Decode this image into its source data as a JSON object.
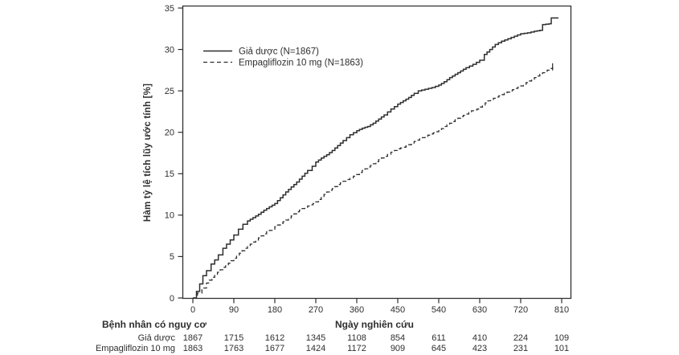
{
  "ui": {
    "background": "#ffffff",
    "text_color": "#2e2e2e",
    "line_color": "#2e2e2e"
  },
  "chart_data": {
    "type": "line",
    "subtype": "kaplan-meier-cumulative-incidence",
    "title": "",
    "xlabel": "Ngày nghiên cứu",
    "ylabel": "Hàm tỷ lệ tích lũy ước tính [%]",
    "xlim": [
      0,
      830
    ],
    "ylim": [
      0,
      35
    ],
    "x_ticks": [
      0,
      90,
      180,
      270,
      360,
      450,
      540,
      630,
      720,
      810
    ],
    "y_ticks": [
      0,
      5,
      10,
      15,
      20,
      25,
      30,
      35
    ],
    "grid": false,
    "legend_position": "inside-top-left",
    "series": [
      {
        "name": "Giả dược (N=1867)",
        "style": "solid",
        "color": "#2e2e2e",
        "end_tick": false,
        "points": [
          [
            0,
            0
          ],
          [
            8,
            0.8
          ],
          [
            15,
            1.7
          ],
          [
            22,
            2.7
          ],
          [
            30,
            3.3
          ],
          [
            40,
            4.1
          ],
          [
            48,
            4.6
          ],
          [
            56,
            5.2
          ],
          [
            66,
            6.0
          ],
          [
            74,
            6.5
          ],
          [
            82,
            7.0
          ],
          [
            90,
            7.6
          ],
          [
            100,
            8.3
          ],
          [
            110,
            8.9
          ],
          [
            120,
            9.3
          ],
          [
            132,
            9.7
          ],
          [
            144,
            10.1
          ],
          [
            156,
            10.6
          ],
          [
            168,
            11.0
          ],
          [
            180,
            11.4
          ],
          [
            192,
            12.1
          ],
          [
            204,
            12.8
          ],
          [
            216,
            13.4
          ],
          [
            228,
            14.0
          ],
          [
            240,
            14.7
          ],
          [
            252,
            15.4
          ],
          [
            262,
            15.9
          ],
          [
            270,
            16.4
          ],
          [
            282,
            16.9
          ],
          [
            294,
            17.3
          ],
          [
            306,
            17.8
          ],
          [
            318,
            18.4
          ],
          [
            330,
            19.0
          ],
          [
            345,
            19.7
          ],
          [
            360,
            20.2
          ],
          [
            372,
            20.5
          ],
          [
            384,
            20.7
          ],
          [
            396,
            21.1
          ],
          [
            408,
            21.6
          ],
          [
            420,
            22.1
          ],
          [
            435,
            22.8
          ],
          [
            450,
            23.4
          ],
          [
            462,
            23.8
          ],
          [
            474,
            24.2
          ],
          [
            486,
            24.7
          ],
          [
            495,
            25.0
          ],
          [
            510,
            25.2
          ],
          [
            525,
            25.4
          ],
          [
            540,
            25.7
          ],
          [
            552,
            26.1
          ],
          [
            564,
            26.6
          ],
          [
            576,
            27.0
          ],
          [
            588,
            27.4
          ],
          [
            600,
            27.8
          ],
          [
            615,
            28.2
          ],
          [
            630,
            28.7
          ],
          [
            640,
            29.4
          ],
          [
            652,
            30.0
          ],
          [
            664,
            30.6
          ],
          [
            678,
            31.0
          ],
          [
            692,
            31.3
          ],
          [
            706,
            31.6
          ],
          [
            720,
            31.9
          ],
          [
            735,
            32.0
          ],
          [
            750,
            32.2
          ],
          [
            762,
            32.3
          ],
          [
            768,
            33.0
          ],
          [
            782,
            33.1
          ],
          [
            787,
            33.8
          ],
          [
            803,
            33.8
          ]
        ]
      },
      {
        "name": "Empagliflozin 10 mg (N=1863)",
        "style": "dashed",
        "color": "#2e2e2e",
        "end_tick": true,
        "points": [
          [
            0,
            0
          ],
          [
            10,
            0.6
          ],
          [
            20,
            1.2
          ],
          [
            30,
            1.8
          ],
          [
            42,
            2.5
          ],
          [
            54,
            3.1
          ],
          [
            66,
            3.7
          ],
          [
            78,
            4.2
          ],
          [
            90,
            4.8
          ],
          [
            102,
            5.4
          ],
          [
            114,
            6.0
          ],
          [
            126,
            6.5
          ],
          [
            138,
            7.0
          ],
          [
            150,
            7.5
          ],
          [
            162,
            8.0
          ],
          [
            174,
            8.3
          ],
          [
            180,
            8.6
          ],
          [
            192,
            9.0
          ],
          [
            204,
            9.4
          ],
          [
            216,
            9.9
          ],
          [
            228,
            10.4
          ],
          [
            240,
            10.8
          ],
          [
            252,
            11.1
          ],
          [
            264,
            11.4
          ],
          [
            270,
            11.6
          ],
          [
            282,
            12.2
          ],
          [
            294,
            12.8
          ],
          [
            306,
            13.2
          ],
          [
            318,
            13.7
          ],
          [
            330,
            14.1
          ],
          [
            345,
            14.5
          ],
          [
            360,
            14.9
          ],
          [
            372,
            15.4
          ],
          [
            384,
            15.8
          ],
          [
            396,
            16.2
          ],
          [
            408,
            16.7
          ],
          [
            420,
            17.1
          ],
          [
            435,
            17.6
          ],
          [
            450,
            18.0
          ],
          [
            462,
            18.2
          ],
          [
            474,
            18.5
          ],
          [
            486,
            18.9
          ],
          [
            498,
            19.2
          ],
          [
            510,
            19.5
          ],
          [
            522,
            19.8
          ],
          [
            540,
            20.2
          ],
          [
            552,
            20.7
          ],
          [
            564,
            21.1
          ],
          [
            576,
            21.5
          ],
          [
            588,
            21.9
          ],
          [
            600,
            22.2
          ],
          [
            612,
            22.6
          ],
          [
            624,
            22.8
          ],
          [
            636,
            23.3
          ],
          [
            648,
            23.8
          ],
          [
            660,
            24.1
          ],
          [
            672,
            24.4
          ],
          [
            684,
            24.7
          ],
          [
            696,
            25.0
          ],
          [
            708,
            25.3
          ],
          [
            720,
            25.6
          ],
          [
            732,
            26.0
          ],
          [
            744,
            26.4
          ],
          [
            756,
            26.8
          ],
          [
            768,
            27.2
          ],
          [
            778,
            27.5
          ],
          [
            790,
            27.9
          ]
        ]
      }
    ],
    "risk_table": {
      "title": "Bệnh nhân có nguy cơ",
      "days": [
        0,
        90,
        180,
        270,
        360,
        450,
        540,
        630,
        720,
        810
      ],
      "rows": [
        {
          "label": "Giả dược",
          "counts": [
            "1867",
            "1715",
            "1612",
            "1345",
            "1108",
            "854",
            "611",
            "410",
            "224",
            "109"
          ]
        },
        {
          "label": "Empagliflozin 10 mg",
          "counts": [
            "1863",
            "1763",
            "1677",
            "1424",
            "1172",
            "909",
            "645",
            "423",
            "231",
            "101"
          ]
        }
      ]
    }
  }
}
